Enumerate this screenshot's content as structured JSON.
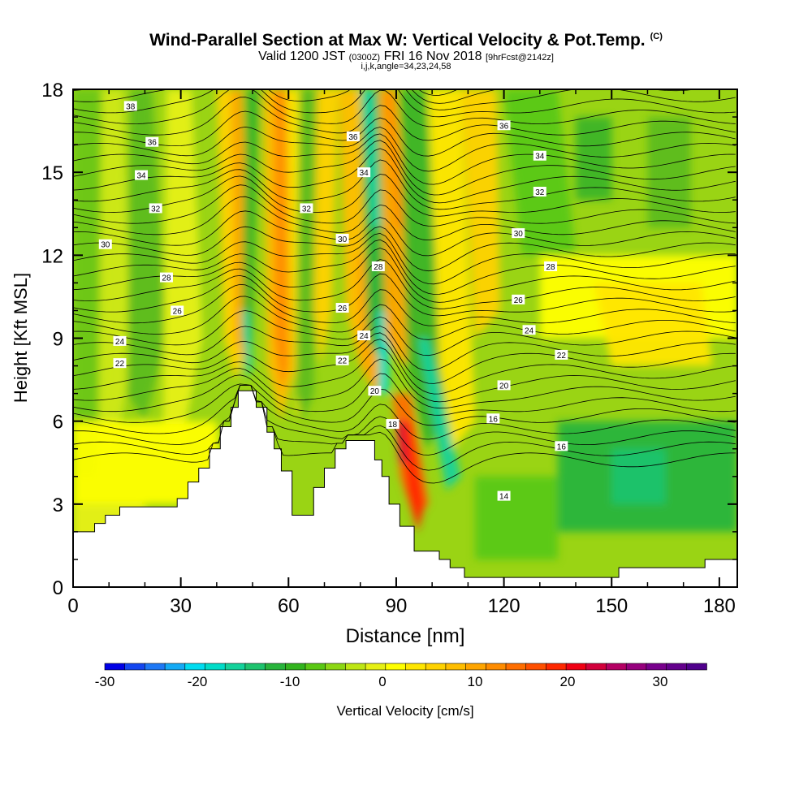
{
  "header": {
    "title": "Wind-Parallel Section at Max W: Vertical Velocity & Pot.Temp.",
    "title_tag": "(C)",
    "valid_prefix": "Valid 1200 JST",
    "valid_utc": "(0300Z)",
    "valid_date": "FRI 16 Nov 2018",
    "forecast": "[9hrFcst@2142z]",
    "indices": "i,j,k,angle=34,23,24,58"
  },
  "chart_data": {
    "type": "heatmap",
    "xlabel": "Distance [nm]",
    "ylabel": "Height [Kft MSL]",
    "xlim": [
      0,
      185
    ],
    "ylim": [
      0,
      18
    ],
    "x_ticks": [
      "0",
      "30",
      "60",
      "90",
      "120",
      "150",
      "180"
    ],
    "y_ticks": [
      "0",
      "3",
      "6",
      "9",
      "12",
      "15",
      "18"
    ],
    "colorbar": {
      "label": "Vertical Velocity [cm/s]",
      "range": [
        -30,
        35
      ],
      "step": 2.5,
      "tick_labels": [
        "-30",
        "-20",
        "-10",
        "0",
        "10",
        "20",
        "30"
      ],
      "colors": [
        "#0000e6",
        "#1446f0",
        "#1e78f5",
        "#14aaf5",
        "#00dcf0",
        "#00dcc8",
        "#14d29b",
        "#1ec36e",
        "#28b43c",
        "#32b41e",
        "#5ac814",
        "#8cd714",
        "#bee614",
        "#e6f014",
        "#ffff00",
        "#ffe600",
        "#ffd200",
        "#ffbe00",
        "#ffa500",
        "#ff8c00",
        "#ff6e00",
        "#ff5000",
        "#ff2800",
        "#f00014",
        "#d2003c",
        "#b40064",
        "#96007d",
        "#78008c",
        "#64008c",
        "#50008c"
      ]
    },
    "terrain": [
      [
        0,
        2.0
      ],
      [
        6,
        2.0
      ],
      [
        6,
        2.3
      ],
      [
        9,
        2.3
      ],
      [
        9,
        2.6
      ],
      [
        13,
        2.6
      ],
      [
        13,
        2.9
      ],
      [
        29,
        2.9
      ],
      [
        29,
        3.2
      ],
      [
        32,
        3.2
      ],
      [
        32,
        3.8
      ],
      [
        35,
        3.8
      ],
      [
        35,
        4.3
      ],
      [
        38,
        4.3
      ],
      [
        38,
        5.0
      ],
      [
        41,
        5.0
      ],
      [
        41,
        5.8
      ],
      [
        44,
        5.8
      ],
      [
        44,
        6.5
      ],
      [
        46,
        6.5
      ],
      [
        46,
        7.1
      ],
      [
        51,
        7.1
      ],
      [
        51,
        6.5
      ],
      [
        54,
        6.5
      ],
      [
        54,
        5.6
      ],
      [
        56,
        5.6
      ],
      [
        56,
        5.0
      ],
      [
        58,
        5.0
      ],
      [
        58,
        4.2
      ],
      [
        61,
        4.2
      ],
      [
        61,
        2.6
      ],
      [
        67,
        2.6
      ],
      [
        67,
        3.6
      ],
      [
        70,
        3.6
      ],
      [
        70,
        4.3
      ],
      [
        73,
        4.3
      ],
      [
        73,
        5.0
      ],
      [
        76,
        5.0
      ],
      [
        76,
        5.3
      ],
      [
        84,
        5.3
      ],
      [
        84,
        4.6
      ],
      [
        86,
        4.6
      ],
      [
        86,
        4.0
      ],
      [
        88,
        4.0
      ],
      [
        88,
        3.0
      ],
      [
        91,
        3.0
      ],
      [
        91,
        2.2
      ],
      [
        95,
        2.2
      ],
      [
        95,
        1.3
      ],
      [
        102,
        1.3
      ],
      [
        102,
        1.0
      ],
      [
        105,
        1.0
      ],
      [
        105,
        0.7
      ],
      [
        109,
        0.7
      ],
      [
        109,
        0.35
      ],
      [
        152,
        0.35
      ],
      [
        152,
        0.7
      ],
      [
        176,
        0.7
      ],
      [
        176,
        1.0
      ],
      [
        185,
        1.0
      ]
    ],
    "theta_labels": [
      "38",
      "36",
      "34",
      "32",
      "30",
      "28",
      "26",
      "24",
      "22",
      "20",
      "18",
      "16",
      "14"
    ],
    "theta_label_positions": [
      {
        "text": "38",
        "x": 16,
        "y": 17.4
      },
      {
        "text": "36",
        "x": 22,
        "y": 16.1
      },
      {
        "text": "34",
        "x": 19,
        "y": 14.9
      },
      {
        "text": "32",
        "x": 23,
        "y": 13.7
      },
      {
        "text": "30",
        "x": 9,
        "y": 12.4
      },
      {
        "text": "28",
        "x": 26,
        "y": 11.2
      },
      {
        "text": "26",
        "x": 29,
        "y": 10.0
      },
      {
        "text": "24",
        "x": 13,
        "y": 8.9
      },
      {
        "text": "22",
        "x": 13,
        "y": 8.1
      },
      {
        "text": "36",
        "x": 78,
        "y": 16.3
      },
      {
        "text": "32",
        "x": 65,
        "y": 13.7
      },
      {
        "text": "30",
        "x": 75,
        "y": 12.6
      },
      {
        "text": "26",
        "x": 75,
        "y": 10.1
      },
      {
        "text": "22",
        "x": 75,
        "y": 8.2
      },
      {
        "text": "28",
        "x": 85,
        "y": 11.6
      },
      {
        "text": "24",
        "x": 81,
        "y": 9.1
      },
      {
        "text": "34",
        "x": 81,
        "y": 15.0
      },
      {
        "text": "20",
        "x": 84,
        "y": 7.1
      },
      {
        "text": "18",
        "x": 89,
        "y": 5.9
      },
      {
        "text": "36",
        "x": 120,
        "y": 16.7
      },
      {
        "text": "34",
        "x": 130,
        "y": 15.6
      },
      {
        "text": "32",
        "x": 130,
        "y": 14.3
      },
      {
        "text": "30",
        "x": 124,
        "y": 12.8
      },
      {
        "text": "28",
        "x": 133,
        "y": 11.6
      },
      {
        "text": "26",
        "x": 124,
        "y": 10.4
      },
      {
        "text": "24",
        "x": 127,
        "y": 9.3
      },
      {
        "text": "22",
        "x": 136,
        "y": 8.4
      },
      {
        "text": "20",
        "x": 120,
        "y": 7.3
      },
      {
        "text": "16",
        "x": 117,
        "y": 6.1
      },
      {
        "text": "16",
        "x": 136,
        "y": 5.1
      },
      {
        "text": "14",
        "x": 120,
        "y": 3.3
      }
    ]
  }
}
